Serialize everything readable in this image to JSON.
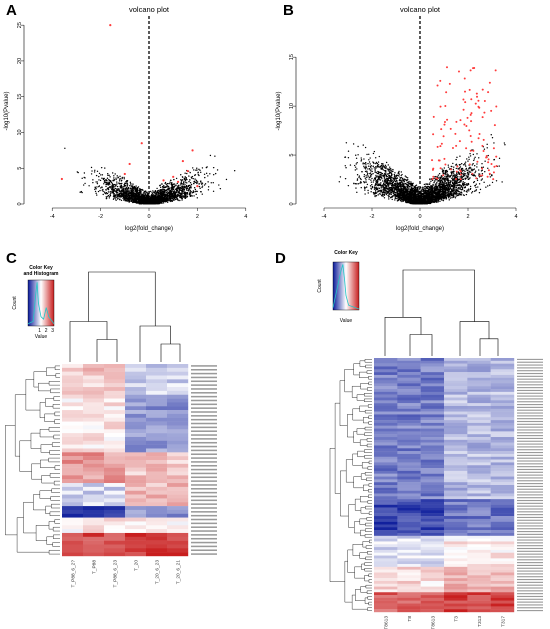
{
  "panels": {
    "A": "A",
    "B": "B",
    "C": "C",
    "D": "D"
  },
  "colors": {
    "point_black": "#000000",
    "point_red": "#ff3b3b",
    "heat_low": "#0a1a9a",
    "heat_mid": "#ffffff",
    "heat_high": "#c81e1e",
    "histogram": "#22c6c6"
  },
  "chart_data": [
    {
      "panel": "A",
      "type": "scatter",
      "title": "volcano plot",
      "xlabel": "log2(fold_change)",
      "ylabel": "-log10(Pvalue)",
      "xlim": [
        -5,
        5
      ],
      "ylim": [
        0,
        26
      ],
      "xticks": [
        "-4",
        "-2",
        "0",
        "2",
        "4"
      ],
      "yticks": [
        "0",
        "5",
        "10",
        "15",
        "20",
        "25"
      ],
      "threshold_x": 0,
      "series": [
        {
          "color": "black",
          "n_points": 2200,
          "x_spread": 1.0,
          "y_max": 8
        },
        {
          "color": "red",
          "points": [
            [
              -1.6,
              25
            ],
            [
              -3.6,
              3.5
            ],
            [
              -1.0,
              4.2
            ],
            [
              -0.8,
              5.6
            ],
            [
              1.0,
              3.8
            ],
            [
              1.4,
              6.0
            ],
            [
              1.6,
              4.6
            ],
            [
              1.2,
              3.1
            ],
            [
              2.0,
              2.5
            ],
            [
              -0.3,
              8.5
            ],
            [
              0.6,
              3.3
            ],
            [
              1.8,
              7.5
            ]
          ]
        }
      ]
    },
    {
      "panel": "B",
      "type": "scatter",
      "title": "volcano plot",
      "xlabel": "log2(fold_change)",
      "ylabel": "-log10(Pvalue)",
      "xlim": [
        -5,
        5
      ],
      "ylim": [
        0,
        19
      ],
      "xticks": [
        "-4",
        "-2",
        "0",
        "2",
        "4"
      ],
      "yticks": [
        "0",
        "5",
        "10",
        "15"
      ],
      "threshold_x": 0,
      "series": [
        {
          "color": "black",
          "n_points": 3400,
          "x_spread": 1.1,
          "y_max": 10
        },
        {
          "color": "red",
          "n_points": 110,
          "x_range": [
            0.5,
            3.2
          ],
          "y_range": [
            2.5,
            14
          ]
        }
      ]
    },
    {
      "panel": "C",
      "type": "heatmap",
      "key_title": "Color Key\nand Histogram",
      "key_xlabel": "Value",
      "key_ylabel": "Count",
      "key_xticks": [
        "1",
        "2",
        "3"
      ],
      "columns": [
        "T_P88_6_2?",
        "T_P88",
        "T_P88_6_23",
        "T_20",
        "T_20_6_23",
        "T_20_6_21"
      ],
      "n_rows": 50
    },
    {
      "panel": "D",
      "type": "heatmap",
      "key_title": "Color Key",
      "key_xlabel": "Value",
      "key_ylabel": "Count",
      "columns": [
        "T8613",
        "T8",
        "T8613",
        "T3",
        "T313",
        "T317"
      ],
      "n_rows": 90
    }
  ]
}
